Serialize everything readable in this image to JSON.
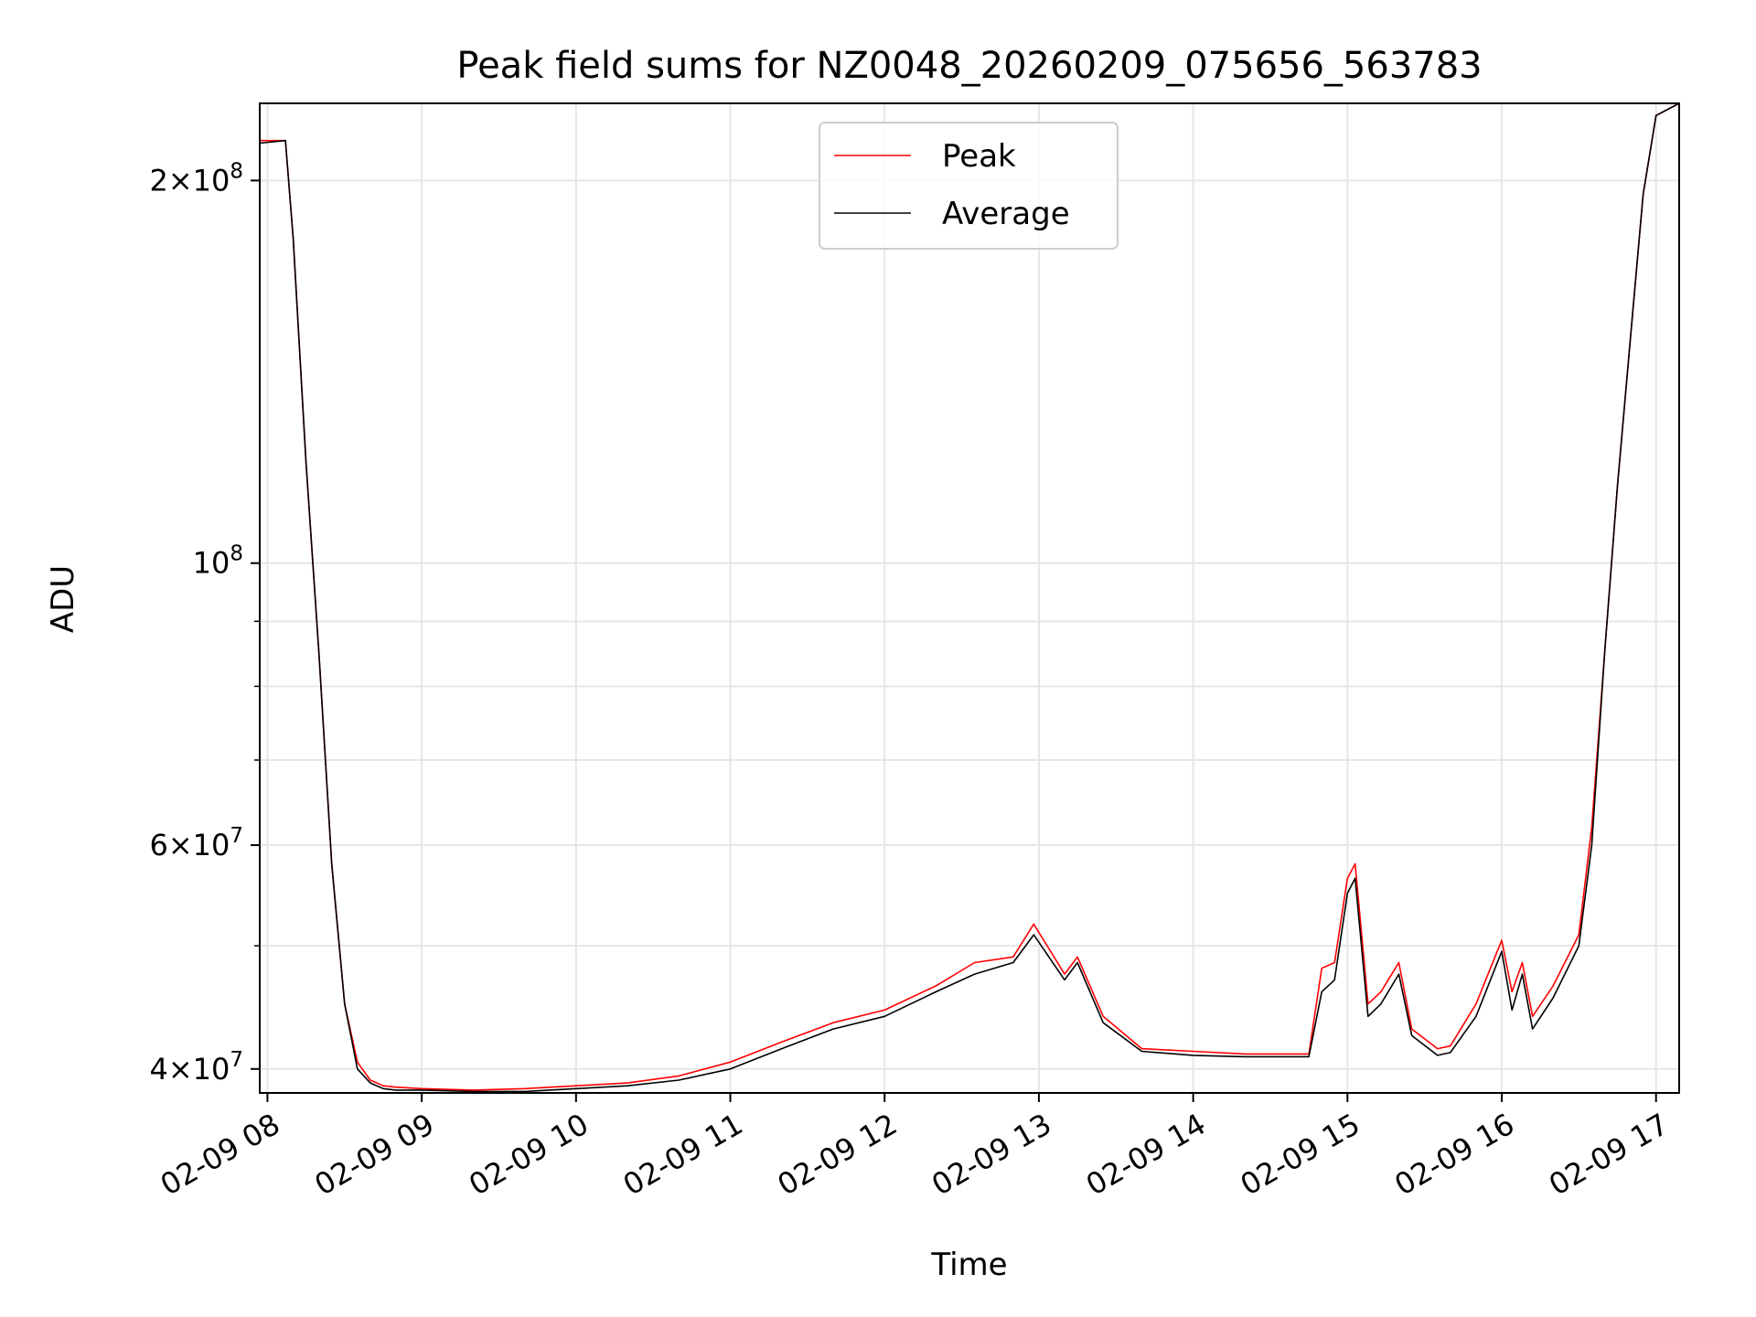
{
  "chart_data": {
    "type": "line",
    "title": "Peak field sums for NZ0048_20260209_075656_563783",
    "xlabel": "Time",
    "ylabel": "ADU",
    "yscale": "log",
    "ylim": [
      38300000,
      230000000
    ],
    "xlim": [
      "2026-02-09T07:57",
      "2026-02-09T17:09"
    ],
    "grid": true,
    "legend": "upper center",
    "x_ticks": [
      {
        "t": "2026-02-09T08:00",
        "label": "02-09 08"
      },
      {
        "t": "2026-02-09T09:00",
        "label": "02-09 09"
      },
      {
        "t": "2026-02-09T10:00",
        "label": "02-09 10"
      },
      {
        "t": "2026-02-09T11:00",
        "label": "02-09 11"
      },
      {
        "t": "2026-02-09T12:00",
        "label": "02-09 12"
      },
      {
        "t": "2026-02-09T13:00",
        "label": "02-09 13"
      },
      {
        "t": "2026-02-09T14:00",
        "label": "02-09 14"
      },
      {
        "t": "2026-02-09T15:00",
        "label": "02-09 15"
      },
      {
        "t": "2026-02-09T16:00",
        "label": "02-09 16"
      },
      {
        "t": "2026-02-09T17:00",
        "label": "02-09 17"
      }
    ],
    "y_ticks": [
      {
        "value": 40000000,
        "base": "4×10",
        "exp": "7"
      },
      {
        "value": 60000000,
        "base": "6×10",
        "exp": "7"
      },
      {
        "value": 100000000,
        "base": "10",
        "exp": "8"
      },
      {
        "value": 200000000,
        "base": "2×10",
        "exp": "8"
      }
    ],
    "y_minor_ticks": [
      50000000,
      70000000,
      80000000,
      90000000
    ],
    "series": [
      {
        "name": "Peak",
        "color": "#ff0000",
        "x": [
          "2026-02-09T07:57",
          "2026-02-09T08:07",
          "2026-02-09T08:10",
          "2026-02-09T08:15",
          "2026-02-09T08:20",
          "2026-02-09T08:25",
          "2026-02-09T08:30",
          "2026-02-09T08:35",
          "2026-02-09T08:40",
          "2026-02-09T08:45",
          "2026-02-09T08:50",
          "2026-02-09T09:00",
          "2026-02-09T09:20",
          "2026-02-09T09:40",
          "2026-02-09T10:00",
          "2026-02-09T10:20",
          "2026-02-09T10:40",
          "2026-02-09T11:00",
          "2026-02-09T11:20",
          "2026-02-09T11:40",
          "2026-02-09T12:00",
          "2026-02-09T12:20",
          "2026-02-09T12:35",
          "2026-02-09T12:50",
          "2026-02-09T12:58",
          "2026-02-09T13:10",
          "2026-02-09T13:15",
          "2026-02-09T13:25",
          "2026-02-09T13:40",
          "2026-02-09T14:00",
          "2026-02-09T14:20",
          "2026-02-09T14:45",
          "2026-02-09T14:50",
          "2026-02-09T14:55",
          "2026-02-09T15:00",
          "2026-02-09T15:03",
          "2026-02-09T15:08",
          "2026-02-09T15:13",
          "2026-02-09T15:20",
          "2026-02-09T15:25",
          "2026-02-09T15:35",
          "2026-02-09T15:40",
          "2026-02-09T15:50",
          "2026-02-09T16:00",
          "2026-02-09T16:04",
          "2026-02-09T16:08",
          "2026-02-09T16:12",
          "2026-02-09T16:20",
          "2026-02-09T16:30",
          "2026-02-09T16:35",
          "2026-02-09T16:40",
          "2026-02-09T16:45",
          "2026-02-09T16:50",
          "2026-02-09T16:55",
          "2026-02-09T17:00",
          "2026-02-09T17:09"
        ],
        "y": [
          215000000,
          215000000,
          180000000,
          120000000,
          85000000,
          58000000,
          45000000,
          40500000,
          39200000,
          38800000,
          38700000,
          38600000,
          38500000,
          38600000,
          38800000,
          39000000,
          39500000,
          40500000,
          42000000,
          43500000,
          44500000,
          46500000,
          48500000,
          49000000,
          52000000,
          47500000,
          49000000,
          44000000,
          41500000,
          41300000,
          41100000,
          41100000,
          48000000,
          48500000,
          56500000,
          58000000,
          45000000,
          46000000,
          48500000,
          43000000,
          41500000,
          41700000,
          45000000,
          50500000,
          46000000,
          48500000,
          44000000,
          46500000,
          51000000,
          62000000,
          85000000,
          115000000,
          150000000,
          195000000,
          225000000,
          230000000
        ]
      },
      {
        "name": "Average",
        "color": "#000000",
        "x": [
          "2026-02-09T07:57",
          "2026-02-09T08:07",
          "2026-02-09T08:10",
          "2026-02-09T08:15",
          "2026-02-09T08:20",
          "2026-02-09T08:25",
          "2026-02-09T08:30",
          "2026-02-09T08:35",
          "2026-02-09T08:40",
          "2026-02-09T08:45",
          "2026-02-09T08:50",
          "2026-02-09T09:00",
          "2026-02-09T09:20",
          "2026-02-09T09:40",
          "2026-02-09T10:00",
          "2026-02-09T10:20",
          "2026-02-09T10:40",
          "2026-02-09T11:00",
          "2026-02-09T11:20",
          "2026-02-09T11:40",
          "2026-02-09T12:00",
          "2026-02-09T12:20",
          "2026-02-09T12:35",
          "2026-02-09T12:50",
          "2026-02-09T12:58",
          "2026-02-09T13:10",
          "2026-02-09T13:15",
          "2026-02-09T13:25",
          "2026-02-09T13:40",
          "2026-02-09T14:00",
          "2026-02-09T14:20",
          "2026-02-09T14:45",
          "2026-02-09T14:50",
          "2026-02-09T14:55",
          "2026-02-09T15:00",
          "2026-02-09T15:03",
          "2026-02-09T15:08",
          "2026-02-09T15:13",
          "2026-02-09T15:20",
          "2026-02-09T15:25",
          "2026-02-09T15:35",
          "2026-02-09T15:40",
          "2026-02-09T15:50",
          "2026-02-09T16:00",
          "2026-02-09T16:04",
          "2026-02-09T16:08",
          "2026-02-09T16:12",
          "2026-02-09T16:20",
          "2026-02-09T16:30",
          "2026-02-09T16:35",
          "2026-02-09T16:40",
          "2026-02-09T16:45",
          "2026-02-09T16:50",
          "2026-02-09T16:55",
          "2026-02-09T17:00",
          "2026-02-09T17:09"
        ],
        "y": [
          214000000,
          215000000,
          180000000,
          120000000,
          85000000,
          58000000,
          45000000,
          40000000,
          39000000,
          38600000,
          38500000,
          38500000,
          38400000,
          38400000,
          38600000,
          38800000,
          39200000,
          40000000,
          41500000,
          43000000,
          44000000,
          46000000,
          47500000,
          48500000,
          51000000,
          47000000,
          48500000,
          43500000,
          41300000,
          41000000,
          40900000,
          40900000,
          46000000,
          47000000,
          55000000,
          56500000,
          44000000,
          45000000,
          47500000,
          42500000,
          41000000,
          41200000,
          44000000,
          49500000,
          44500000,
          47500000,
          43000000,
          45500000,
          50000000,
          60000000,
          85000000,
          115000000,
          150000000,
          195000000,
          225000000,
          230000000
        ]
      }
    ]
  }
}
